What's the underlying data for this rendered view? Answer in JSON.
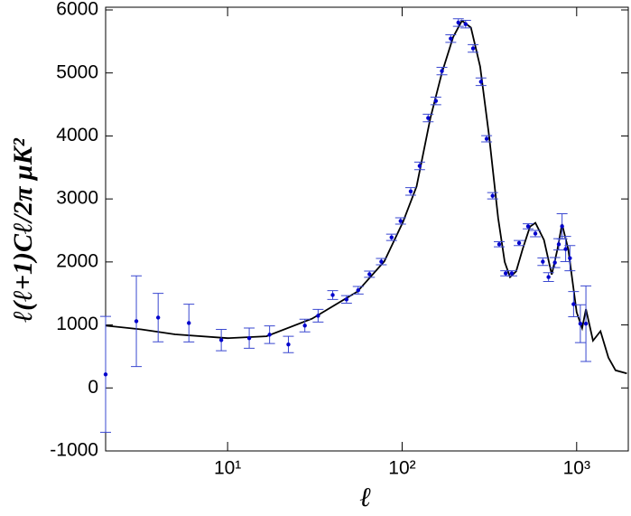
{
  "chart_data": {
    "type": "scatter",
    "xlabel": "ℓ",
    "ylabel": "ℓ(ℓ+1)Cℓ/2π μK²",
    "xscale": "log",
    "xlim": [
      2,
      2000
    ],
    "ylim": [
      -1000,
      6000
    ],
    "xticks": [
      {
        "value": 10,
        "label": "10¹"
      },
      {
        "value": 100,
        "label": "10²"
      },
      {
        "value": 1000,
        "label": "10³"
      }
    ],
    "yticks": [
      -1000,
      0,
      1000,
      2000,
      3000,
      4000,
      5000,
      6000
    ],
    "curve": {
      "color": "#000000",
      "x": [
        2,
        3.2,
        5,
        10,
        16.7,
        30.5,
        55.5,
        79,
        101,
        121,
        145,
        169,
        196,
        220,
        248,
        280,
        315,
        355,
        387,
        415,
        450,
        490,
        540,
        580,
        650,
        720,
        776,
        825,
        895,
        1000,
        1075,
        1130,
        1240,
        1370,
        1520,
        1670,
        1940
      ],
      "values": [
        990,
        930,
        850,
        790,
        820,
        1100,
        1530,
        2010,
        2630,
        3200,
        4280,
        5000,
        5570,
        5830,
        5720,
        5100,
        4000,
        2700,
        2000,
        1760,
        1850,
        2200,
        2560,
        2620,
        2350,
        1800,
        2200,
        2600,
        2200,
        1200,
        950,
        1250,
        750,
        900,
        480,
        280,
        230
      ]
    },
    "points": {
      "color": "#0000cc",
      "error_color": "#3a48d0",
      "x": [
        2,
        3,
        4,
        6,
        9.2,
        13.3,
        17.4,
        22.3,
        27.7,
        33,
        40,
        48,
        56,
        65,
        76,
        87,
        98,
        112,
        126,
        141,
        156,
        169,
        190,
        210,
        231,
        255,
        283,
        305,
        330,
        360,
        392,
        425,
        468,
        527,
        580,
        640,
        690,
        750,
        790,
        825,
        865,
        915,
        960,
        1050,
        1130
      ],
      "values": [
        215,
        1060,
        1117,
        1030,
        760,
        790,
        845,
        690,
        990,
        1146,
        1475,
        1405,
        1550,
        1805,
        2005,
        2390,
        2650,
        3120,
        3525,
        4285,
        4555,
        5030,
        5545,
        5800,
        5775,
        5390,
        4860,
        3955,
        3050,
        2280,
        1820,
        1820,
        2300,
        2565,
        2450,
        2005,
        1760,
        1990,
        2280,
        2565,
        2205,
        2060,
        1330,
        1020,
        1020
      ],
      "errors": [
        920,
        720,
        385,
        300,
        170,
        160,
        140,
        130,
        100,
        100,
        70,
        60,
        60,
        50,
        50,
        50,
        50,
        60,
        60,
        60,
        60,
        60,
        60,
        60,
        60,
        60,
        60,
        50,
        50,
        40,
        40,
        40,
        40,
        40,
        50,
        60,
        70,
        80,
        90,
        200,
        200,
        200,
        200,
        300,
        600
      ]
    }
  }
}
